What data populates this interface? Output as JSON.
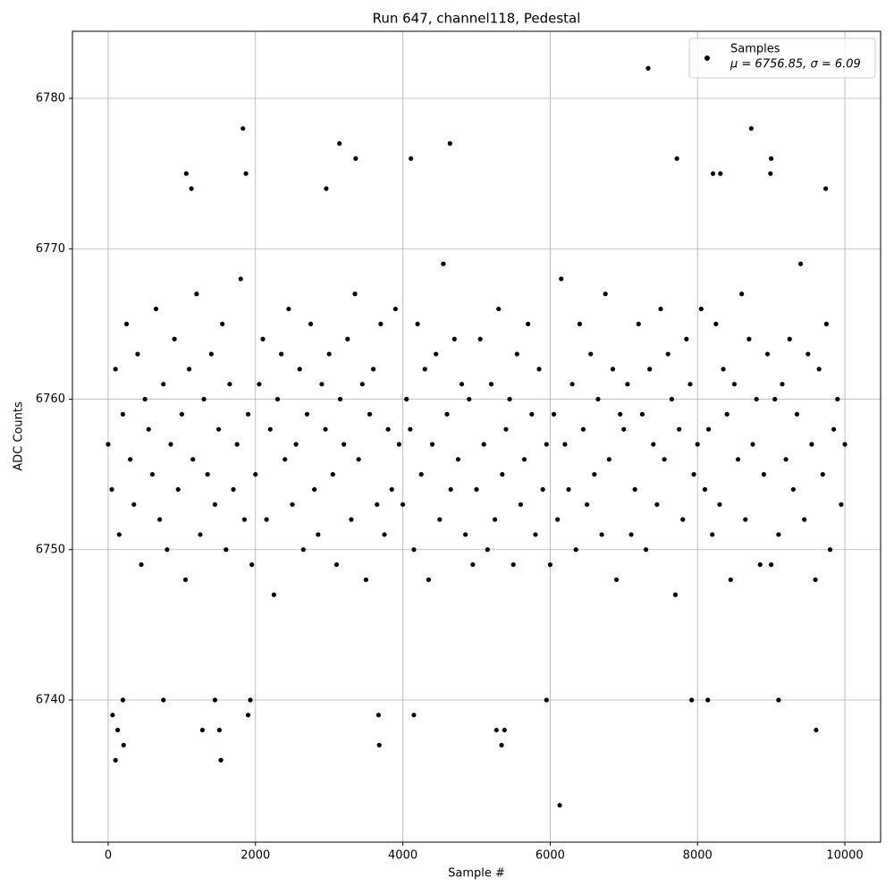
{
  "chart_data": {
    "type": "scatter",
    "title": "Run 647, channel118, Pedestal",
    "x_label": "Sample #",
    "y_label": "ADC Counts",
    "xlim": [
      -485,
      10485
    ],
    "ylim": [
      6730.55,
      6784.46
    ],
    "xticks": [
      0,
      2000,
      4000,
      6000,
      8000,
      10000
    ],
    "yticks": [
      6740,
      6750,
      6760,
      6770,
      6780
    ],
    "grid": true,
    "legend": "upper right",
    "legend_note": "μ = 6756.85, σ = 6.09",
    "series": [
      {
        "name": "Samples",
        "color": "#000000",
        "x": [
          0,
          50,
          100,
          150,
          200,
          250,
          300,
          350,
          400,
          450,
          500,
          550,
          600,
          650,
          700,
          750,
          800,
          850,
          900,
          950,
          1000,
          1050,
          1100,
          1150,
          1200,
          1250,
          1300,
          1350,
          1400,
          1450,
          1500,
          1550,
          1600,
          1650,
          1700,
          1750,
          1800,
          1850,
          1900,
          1950,
          2000,
          2050,
          2100,
          2150,
          2200,
          2250,
          2300,
          2350,
          2400,
          2450,
          2500,
          2550,
          2600,
          2650,
          2700,
          2750,
          2800,
          2850,
          2900,
          2950,
          3000,
          3050,
          3100,
          3150,
          3200,
          3250,
          3300,
          3350,
          3400,
          3450,
          3500,
          3550,
          3600,
          3650,
          3700,
          3750,
          3800,
          3850,
          3900,
          3950,
          4000,
          4050,
          4100,
          4150,
          4200,
          4250,
          4300,
          4350,
          4400,
          4450,
          4500,
          4550,
          4600,
          4650,
          4700,
          4750,
          4800,
          4850,
          4900,
          4950,
          5000,
          5050,
          5100,
          5150,
          5200,
          5250,
          5300,
          5350,
          5400,
          5450,
          5500,
          5550,
          5600,
          5650,
          5700,
          5750,
          5800,
          5850,
          5900,
          5950,
          6000,
          6050,
          6100,
          6150,
          6200,
          6250,
          6300,
          6350,
          6400,
          6450,
          6500,
          6550,
          6600,
          6650,
          6700,
          6750,
          6800,
          6850,
          6900,
          6950,
          7000,
          7050,
          7100,
          7150,
          7200,
          7250,
          7300,
          7350,
          7400,
          7450,
          7500,
          7550,
          7600,
          7650,
          7700,
          7750,
          7800,
          7850,
          7900,
          7950,
          8000,
          8050,
          8100,
          8150,
          8200,
          8250,
          8300,
          8350,
          8400,
          8450,
          8500,
          8550,
          8600,
          8650,
          8700,
          8750,
          8800,
          8850,
          8900,
          8950,
          9000,
          9050,
          9100,
          9150,
          9200,
          9250,
          9300,
          9350,
          9400,
          9450,
          9500,
          9550,
          9600,
          9650,
          9700,
          9750,
          9800,
          9850,
          9900,
          9950,
          10000,
          7330,
          1830,
          8730,
          3140,
          4640,
          1060,
          1870,
          8990,
          9000,
          4110,
          3360,
          7720,
          6130,
          100,
          1530,
          3680,
          210,
          5340,
          9610,
          130,
          1280,
          1510,
          5270,
          5380,
          5950,
          7920,
          8140,
          9100,
          200,
          1450,
          1930,
          750,
          60,
          1900,
          3670,
          4150,
          8210,
          8310,
          2960,
          9740,
          1130
        ],
        "values": [
          6757,
          6754,
          6762,
          6751,
          6759,
          6765,
          6756,
          6753,
          6763,
          6749,
          6760,
          6758,
          6755,
          6766,
          6752,
          6761,
          6750,
          6757,
          6764,
          6754,
          6759,
          6748,
          6762,
          6756,
          6767,
          6751,
          6760,
          6755,
          6763,
          6753,
          6758,
          6765,
          6750,
          6761,
          6754,
          6757,
          6768,
          6752,
          6759,
          6749,
          6755,
          6761,
          6764,
          6752,
          6758,
          6747,
          6760,
          6763,
          6756,
          6766,
          6753,
          6757,
          6762,
          6750,
          6759,
          6765,
          6754,
          6751,
          6761,
          6758,
          6763,
          6755,
          6749,
          6760,
          6757,
          6764,
          6752,
          6767,
          6756,
          6761,
          6748,
          6759,
          6762,
          6753,
          6765,
          6751,
          6758,
          6754,
          6766,
          6757,
          6753,
          6760,
          6758,
          6750,
          6765,
          6755,
          6762,
          6748,
          6757,
          6763,
          6752,
          6769,
          6759,
          6754,
          6764,
          6756,
          6761,
          6751,
          6760,
          6749,
          6754,
          6764,
          6757,
          6750,
          6761,
          6752,
          6766,
          6755,
          6758,
          6760,
          6749,
          6763,
          6753,
          6756,
          6765,
          6759,
          6751,
          6762,
          6754,
          6757,
          6749,
          6759,
          6752,
          6768,
          6757,
          6754,
          6761,
          6750,
          6765,
          6758,
          6753,
          6763,
          6755,
          6760,
          6751,
          6767,
          6756,
          6762,
          6748,
          6759,
          6758,
          6761,
          6751,
          6754,
          6765,
          6759,
          6750,
          6762,
          6757,
          6753,
          6766,
          6756,
          6763,
          6760,
          6747,
          6758,
          6752,
          6764,
          6761,
          6755,
          6757,
          6766,
          6754,
          6758,
          6751,
          6765,
          6753,
          6762,
          6759,
          6748,
          6761,
          6756,
          6767,
          6752,
          6764,
          6757,
          6760,
          6749,
          6755,
          6763,
          6749,
          6760,
          6751,
          6761,
          6756,
          6764,
          6754,
          6759,
          6769,
          6752,
          6763,
          6757,
          6748,
          6762,
          6755,
          6765,
          6750,
          6758,
          6760,
          6753,
          6757,
          6782,
          6778,
          6778,
          6777,
          6777,
          6775,
          6775,
          6775,
          6776,
          6776,
          6776,
          6776,
          6733,
          6736,
          6736,
          6737,
          6737,
          6737,
          6738,
          6738,
          6738,
          6738,
          6738,
          6738,
          6740,
          6740,
          6740,
          6740,
          6740,
          6740,
          6740,
          6740,
          6739,
          6739,
          6739,
          6739,
          6775,
          6775,
          6774,
          6774,
          6774
        ]
      }
    ]
  }
}
